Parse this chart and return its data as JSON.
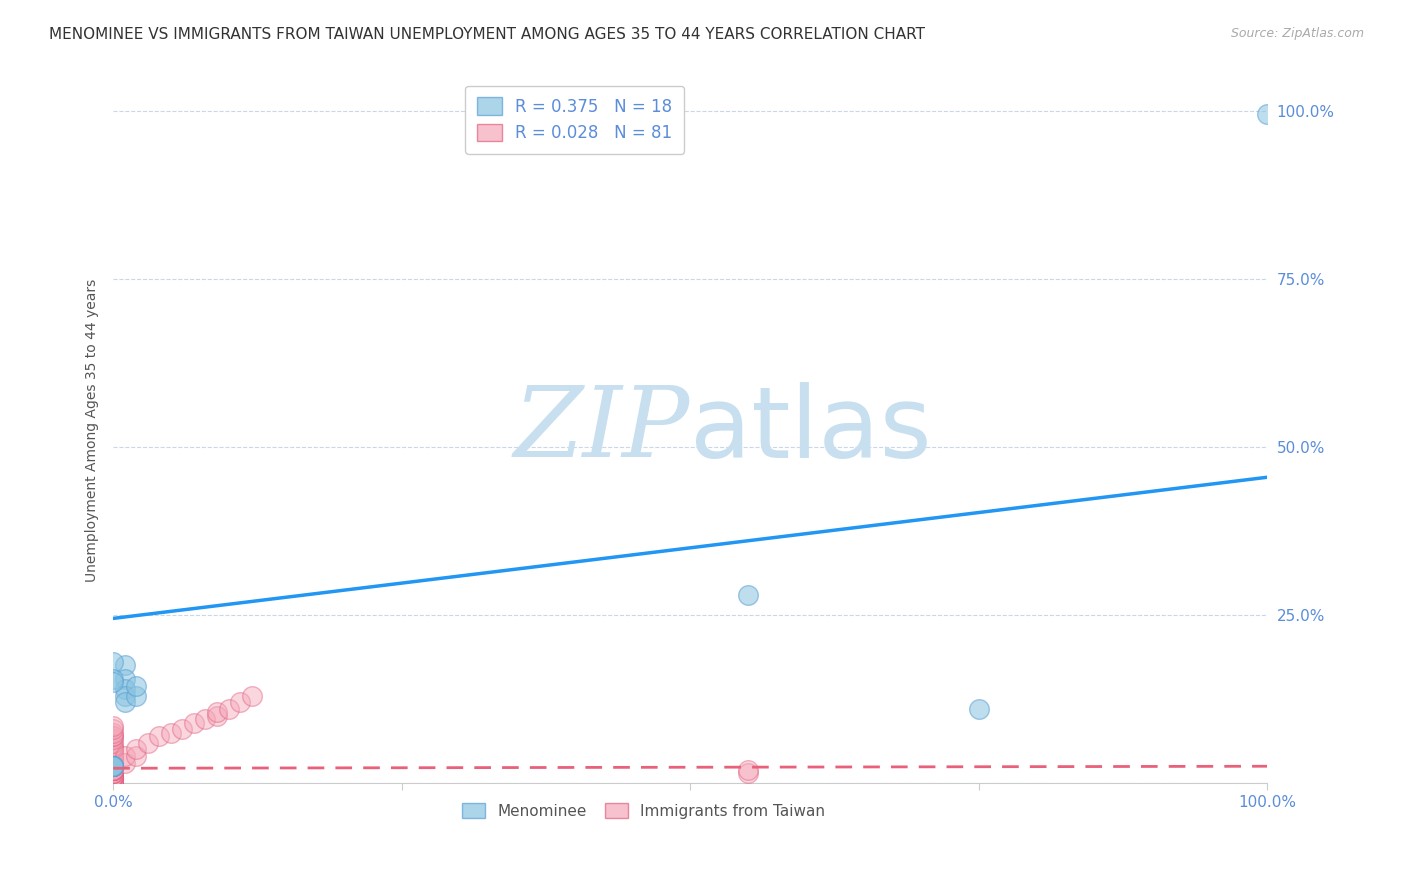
{
  "title": "MENOMINEE VS IMMIGRANTS FROM TAIWAN UNEMPLOYMENT AMONG AGES 35 TO 44 YEARS CORRELATION CHART",
  "source": "Source: ZipAtlas.com",
  "ylabel": "Unemployment Among Ages 35 to 44 years",
  "xlim": [
    0,
    1
  ],
  "ylim": [
    0,
    1.05
  ],
  "menominee_x": [
    0.01,
    0.01,
    0.01,
    0.01,
    0.01,
    0.02,
    0.02,
    0.55,
    0.75,
    1.0,
    0.0,
    0.0,
    0.0,
    0.0,
    0.0,
    0.0,
    0.0,
    0.0
  ],
  "menominee_y": [
    0.175,
    0.155,
    0.14,
    0.13,
    0.12,
    0.13,
    0.145,
    0.28,
    0.11,
    0.995,
    0.18,
    0.155,
    0.15,
    0.025,
    0.025,
    0.025,
    0.025,
    0.025
  ],
  "taiwan_x": [
    0.0,
    0.0,
    0.0,
    0.0,
    0.0,
    0.0,
    0.0,
    0.0,
    0.0,
    0.0,
    0.0,
    0.0,
    0.0,
    0.0,
    0.0,
    0.0,
    0.0,
    0.0,
    0.0,
    0.0,
    0.0,
    0.0,
    0.0,
    0.0,
    0.0,
    0.0,
    0.0,
    0.0,
    0.0,
    0.0,
    0.0,
    0.0,
    0.0,
    0.0,
    0.0,
    0.0,
    0.0,
    0.0,
    0.0,
    0.0,
    0.0,
    0.0,
    0.0,
    0.0,
    0.0,
    0.0,
    0.0,
    0.0,
    0.0,
    0.0,
    0.0,
    0.0,
    0.0,
    0.0,
    0.0,
    0.0,
    0.0,
    0.0,
    0.0,
    0.0,
    0.0,
    0.0,
    0.0,
    0.0,
    0.01,
    0.01,
    0.02,
    0.02,
    0.03,
    0.04,
    0.05,
    0.06,
    0.07,
    0.08,
    0.09,
    0.09,
    0.1,
    0.11,
    0.12,
    0.55,
    0.55
  ],
  "taiwan_y": [
    0.0,
    0.0,
    0.0,
    0.0,
    0.005,
    0.005,
    0.005,
    0.005,
    0.005,
    0.01,
    0.01,
    0.01,
    0.01,
    0.01,
    0.01,
    0.01,
    0.01,
    0.015,
    0.015,
    0.015,
    0.015,
    0.02,
    0.02,
    0.02,
    0.02,
    0.02,
    0.02,
    0.02,
    0.02,
    0.02,
    0.02,
    0.025,
    0.025,
    0.025,
    0.025,
    0.025,
    0.025,
    0.03,
    0.03,
    0.03,
    0.03,
    0.03,
    0.03,
    0.03,
    0.03,
    0.03,
    0.035,
    0.035,
    0.04,
    0.04,
    0.04,
    0.04,
    0.045,
    0.05,
    0.05,
    0.05,
    0.055,
    0.06,
    0.065,
    0.07,
    0.07,
    0.075,
    0.08,
    0.085,
    0.03,
    0.04,
    0.04,
    0.05,
    0.06,
    0.07,
    0.075,
    0.08,
    0.09,
    0.095,
    0.1,
    0.105,
    0.11,
    0.12,
    0.13,
    0.015,
    0.02
  ],
  "menominee_color": "#89c4e1",
  "menominee_edge_color": "#5a9fd4",
  "taiwan_color": "#f4a7b9",
  "taiwan_edge_color": "#e06080",
  "menominee_line_color": "#2196F3",
  "taiwan_line_color": "#e8607a",
  "men_line_x0": 0.0,
  "men_line_y0": 0.245,
  "men_line_x1": 1.0,
  "men_line_y1": 0.455,
  "tai_line_x0": 0.0,
  "tai_line_y0": 0.022,
  "tai_line_x1": 1.0,
  "tai_line_y1": 0.025,
  "legend_r1": "R = 0.375",
  "legend_n1": "N = 18",
  "legend_r2": "R = 0.028",
  "legend_n2": "N = 81",
  "watermark_zip": "ZIP",
  "watermark_atlas": "atlas",
  "watermark_color_zip": "#c8dff0",
  "watermark_color_atlas": "#c8dff0",
  "background_color": "#ffffff",
  "grid_color": "#c8d8e8",
  "title_fontsize": 11,
  "axis_label_fontsize": 10,
  "tick_fontsize": 11,
  "tick_color": "#5b8dd9"
}
